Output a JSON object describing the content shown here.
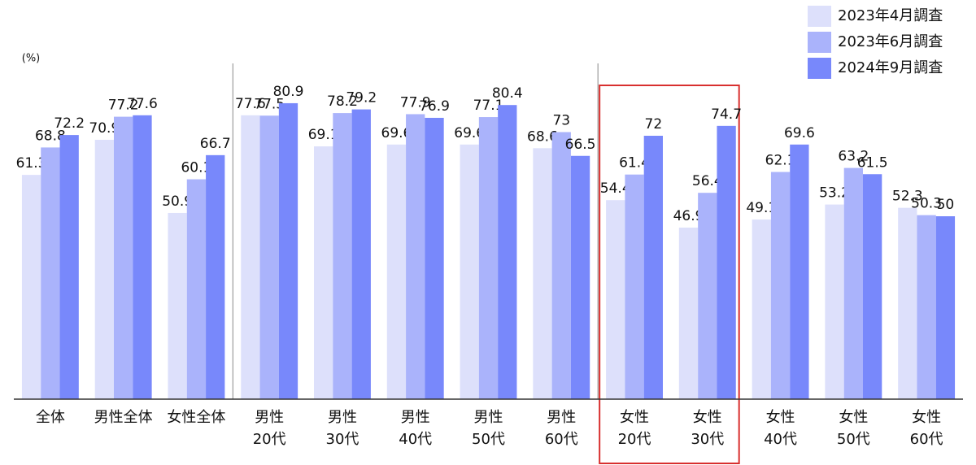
{
  "chart_data": {
    "type": "bar",
    "y_label": "(%)",
    "categories": [
      "全体",
      "男性全体",
      "女性全体",
      "男性\n20代",
      "男性\n30代",
      "男性\n40代",
      "男性\n50代",
      "男性\n60代",
      "女性\n20代",
      "女性\n30代",
      "女性\n40代",
      "女性\n50代",
      "女性\n60代"
    ],
    "series": [
      {
        "name": "2023年4月調査",
        "color": "#dde0fb",
        "values": [
          61.3,
          70.9,
          50.9,
          77.6,
          69.1,
          69.6,
          69.6,
          68.6,
          54.4,
          46.9,
          49.1,
          53.2,
          52.3
        ]
      },
      {
        "name": "2023年6月調査",
        "color": "#aab3fb",
        "values": [
          68.8,
          77.2,
          60.1,
          77.5,
          78.2,
          77.9,
          77.1,
          73.0,
          61.4,
          56.4,
          62.1,
          63.2,
          50.3
        ]
      },
      {
        "name": "2024年9月調査",
        "color": "#7888fb",
        "values": [
          72.2,
          77.6,
          66.7,
          80.9,
          79.2,
          76.9,
          80.4,
          66.5,
          72.0,
          74.7,
          69.6,
          61.5,
          50.0
        ]
      }
    ],
    "ylim": [
      0,
      100
    ],
    "legend": "top-right"
  }
}
